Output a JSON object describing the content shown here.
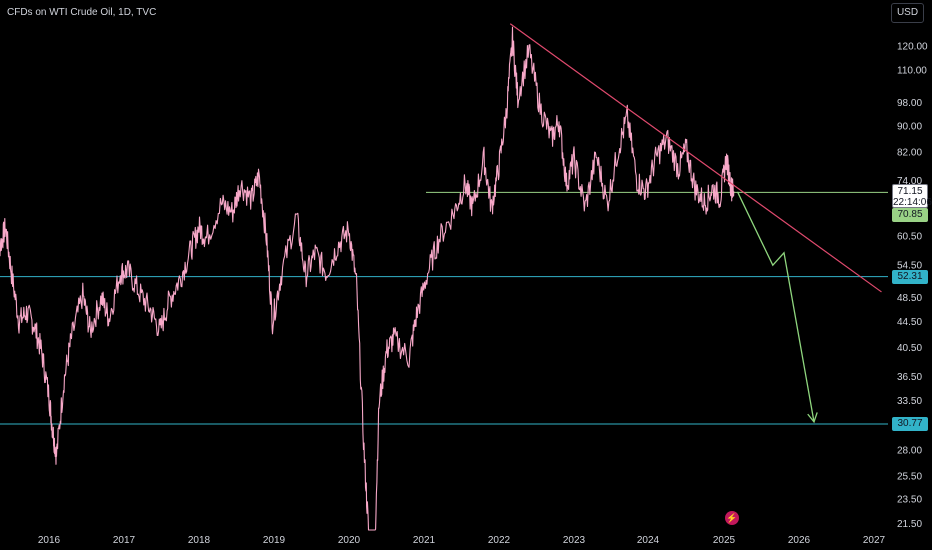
{
  "header": {
    "symbol_title": "CFDs on WTI Crude Oil, 1D, TVC",
    "currency_button": "USD"
  },
  "price_tags": {
    "current_price": "71.15",
    "countdown": "22:14:06",
    "green_level": "70.85",
    "upper_support": "52.31",
    "lower_support": "30.77"
  },
  "colors": {
    "background": "#000000",
    "price_line": "#f7a8c8",
    "trendline": "#e04a6e",
    "horizontal_green": "#9ad286",
    "horizontal_cyan": "#32b3c9",
    "projection_arrow": "#8fd67e",
    "axis_text": "#d1d4dc"
  },
  "icons": {
    "logo": "tradingview-logo-icon"
  },
  "chart_data": {
    "type": "line",
    "title": "CFDs on WTI Crude Oil, 1D, TVC",
    "xlabel": "",
    "ylabel": "",
    "x_ticks": [
      "2016",
      "2017",
      "2018",
      "2019",
      "2020",
      "2021",
      "2022",
      "2023",
      "2024",
      "2025",
      "2026",
      "2027"
    ],
    "y_ticks": [
      120.0,
      110.0,
      98.0,
      90.0,
      82.0,
      74.0,
      60.5,
      54.5,
      48.5,
      44.5,
      40.5,
      36.5,
      33.5,
      28.0,
      25.5,
      23.5,
      21.5
    ],
    "y_scale": "log",
    "ylim": [
      21,
      130
    ],
    "xlim": [
      2015.3,
      2027.1
    ],
    "grid": false,
    "series": [
      {
        "values": [
          [
            2015.3,
            60.0
          ],
          [
            2015.35,
            58.5
          ],
          [
            2015.42,
            62.5
          ],
          [
            2015.5,
            53.0
          ],
          [
            2015.6,
            44.5
          ],
          [
            2015.7,
            46.0
          ],
          [
            2015.8,
            44.0
          ],
          [
            2015.9,
            40.0
          ],
          [
            2016.0,
            34.0
          ],
          [
            2016.05,
            30.0
          ],
          [
            2016.1,
            27.5
          ],
          [
            2016.2,
            36.0
          ],
          [
            2016.3,
            42.0
          ],
          [
            2016.45,
            49.0
          ],
          [
            2016.55,
            43.0
          ],
          [
            2016.7,
            48.5
          ],
          [
            2016.8,
            45.0
          ],
          [
            2016.95,
            53.0
          ],
          [
            2017.05,
            53.5
          ],
          [
            2017.2,
            49.5
          ],
          [
            2017.35,
            46.5
          ],
          [
            2017.48,
            43.0
          ],
          [
            2017.6,
            48.0
          ],
          [
            2017.75,
            52.0
          ],
          [
            2017.9,
            58.0
          ],
          [
            2018.0,
            62.5
          ],
          [
            2018.1,
            60.0
          ],
          [
            2018.3,
            68.0
          ],
          [
            2018.45,
            66.0
          ],
          [
            2018.55,
            73.0
          ],
          [
            2018.7,
            69.0
          ],
          [
            2018.8,
            75.5
          ],
          [
            2018.9,
            60.0
          ],
          [
            2018.98,
            44.5
          ],
          [
            2019.1,
            53.0
          ],
          [
            2019.3,
            65.0
          ],
          [
            2019.42,
            52.5
          ],
          [
            2019.55,
            57.0
          ],
          [
            2019.7,
            53.0
          ],
          [
            2019.85,
            58.5
          ],
          [
            2020.0,
            62.0
          ],
          [
            2020.1,
            51.0
          ],
          [
            2020.2,
            28.0
          ],
          [
            2020.27,
            20.0
          ],
          [
            2020.32,
            16.0
          ],
          [
            2020.4,
            33.0
          ],
          [
            2020.5,
            40.0
          ],
          [
            2020.6,
            42.0
          ],
          [
            2020.8,
            39.0
          ],
          [
            2020.9,
            45.5
          ],
          [
            2021.05,
            53.0
          ],
          [
            2021.2,
            60.0
          ],
          [
            2021.4,
            66.0
          ],
          [
            2021.55,
            73.0
          ],
          [
            2021.65,
            67.0
          ],
          [
            2021.8,
            80.0
          ],
          [
            2021.9,
            67.0
          ],
          [
            2022.0,
            78.0
          ],
          [
            2022.1,
            95.0
          ],
          [
            2022.18,
            123.0
          ],
          [
            2022.25,
            100.0
          ],
          [
            2022.4,
            118.0
          ],
          [
            2022.55,
            96.0
          ],
          [
            2022.7,
            86.0
          ],
          [
            2022.8,
            92.0
          ],
          [
            2022.9,
            73.0
          ],
          [
            2023.0,
            80.0
          ],
          [
            2023.15,
            67.0
          ],
          [
            2023.3,
            81.0
          ],
          [
            2023.45,
            68.0
          ],
          [
            2023.6,
            83.0
          ],
          [
            2023.72,
            93.0
          ],
          [
            2023.85,
            74.0
          ],
          [
            2023.97,
            71.0
          ],
          [
            2024.1,
            80.0
          ],
          [
            2024.25,
            86.0
          ],
          [
            2024.4,
            77.0
          ],
          [
            2024.5,
            83.0
          ],
          [
            2024.62,
            72.0
          ],
          [
            2024.75,
            68.0
          ],
          [
            2024.85,
            72.0
          ],
          [
            2024.95,
            69.5
          ],
          [
            2025.03,
            80.0
          ],
          [
            2025.1,
            72.0
          ],
          [
            2025.13,
            71.15
          ]
        ]
      }
    ],
    "annotations": {
      "trendline": [
        [
          2022.15,
          130.0
        ],
        [
          2027.1,
          49.5
        ]
      ],
      "horizontal_levels": [
        70.85,
        52.31,
        30.77
      ],
      "projection_path": [
        [
          2025.18,
          71.0
        ],
        [
          2025.65,
          54.5
        ],
        [
          2025.8,
          57.0
        ],
        [
          2026.2,
          31.0
        ]
      ]
    }
  }
}
